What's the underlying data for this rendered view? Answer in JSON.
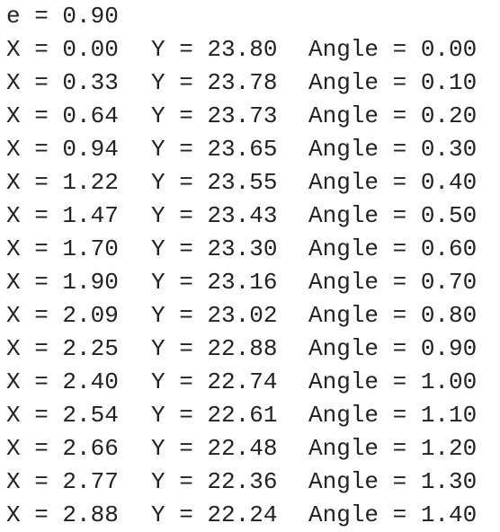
{
  "header": "e = 0.90",
  "rows": [
    {
      "x": "X = 0.00",
      "y": "Y = 23.80",
      "angle": "Angle = 0.00"
    },
    {
      "x": "X = 0.33",
      "y": "Y = 23.78",
      "angle": "Angle = 0.10"
    },
    {
      "x": "X = 0.64",
      "y": "Y = 23.73",
      "angle": "Angle = 0.20"
    },
    {
      "x": "X = 0.94",
      "y": "Y = 23.65",
      "angle": "Angle = 0.30"
    },
    {
      "x": "X = 1.22",
      "y": "Y = 23.55",
      "angle": "Angle = 0.40"
    },
    {
      "x": "X = 1.47",
      "y": "Y = 23.43",
      "angle": "Angle = 0.50"
    },
    {
      "x": "X = 1.70",
      "y": "Y = 23.30",
      "angle": "Angle = 0.60"
    },
    {
      "x": "X = 1.90",
      "y": "Y = 23.16",
      "angle": "Angle = 0.70"
    },
    {
      "x": "X = 2.09",
      "y": "Y = 23.02",
      "angle": "Angle = 0.80"
    },
    {
      "x": "X = 2.25",
      "y": "Y = 22.88",
      "angle": "Angle = 0.90"
    },
    {
      "x": "X = 2.40",
      "y": "Y = 22.74",
      "angle": "Angle = 1.00"
    },
    {
      "x": "X = 2.54",
      "y": "Y = 22.61",
      "angle": "Angle = 1.10"
    },
    {
      "x": "X = 2.66",
      "y": "Y = 22.48",
      "angle": "Angle = 1.20"
    },
    {
      "x": "X = 2.77",
      "y": "Y = 22.36",
      "angle": "Angle = 1.30"
    },
    {
      "x": "X = 2.88",
      "y": "Y = 22.24",
      "angle": "Angle = 1.40"
    }
  ]
}
